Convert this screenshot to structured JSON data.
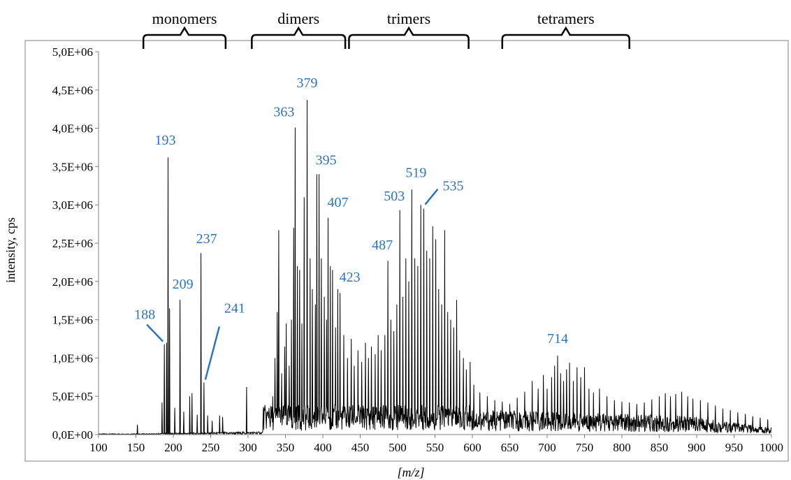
{
  "chart_data": {
    "type": "line",
    "title": "",
    "xlabel": "[m/z]",
    "ylabel": "intensity, cps",
    "xlim": [
      100,
      1000
    ],
    "ylim": [
      0,
      5000000
    ],
    "x_ticks": [
      100,
      150,
      200,
      250,
      300,
      350,
      400,
      450,
      500,
      550,
      600,
      650,
      700,
      750,
      800,
      850,
      900,
      950,
      1000
    ],
    "x_tick_labels": [
      "100",
      "150",
      "200",
      "250",
      "300",
      "350",
      "400",
      "450",
      "500",
      "550",
      "600",
      "650",
      "700",
      "750",
      "800",
      "850",
      "900",
      "950",
      "1000"
    ],
    "y_ticks": [
      0,
      500000,
      1000000,
      1500000,
      2000000,
      2500000,
      3000000,
      3500000,
      4000000,
      4500000,
      5000000
    ],
    "y_tick_labels": [
      "0,0E+00",
      "5,0E+05",
      "1,0E+06",
      "1,5E+06",
      "2,0E+06",
      "2,5E+06",
      "3,0E+06",
      "3,5E+06",
      "4,0E+06",
      "4,5E+06",
      "5,0E+06"
    ],
    "grid": false,
    "line_color": "#000000",
    "label_color": "#2e75b6",
    "groups": [
      {
        "name": "monomers",
        "from": 160,
        "to": 270
      },
      {
        "name": "dimers",
        "from": 305,
        "to": 430
      },
      {
        "name": "trimers",
        "from": 435,
        "to": 595
      },
      {
        "name": "tetramers",
        "from": 640,
        "to": 810
      }
    ],
    "peaks": [
      {
        "x": 152,
        "y": 130000
      },
      {
        "x": 185,
        "y": 420000
      },
      {
        "x": 188,
        "y": 1180000,
        "label": "188",
        "leader": true
      },
      {
        "x": 191,
        "y": 1200000
      },
      {
        "x": 193,
        "y": 3620000,
        "label": "193"
      },
      {
        "x": 195,
        "y": 1650000
      },
      {
        "x": 202,
        "y": 350000
      },
      {
        "x": 209,
        "y": 1760000,
        "label": "209"
      },
      {
        "x": 214,
        "y": 300000
      },
      {
        "x": 222,
        "y": 500000
      },
      {
        "x": 225,
        "y": 540000
      },
      {
        "x": 232,
        "y": 260000
      },
      {
        "x": 237,
        "y": 2370000,
        "label": "237"
      },
      {
        "x": 241,
        "y": 680000,
        "label": "241",
        "leader": true
      },
      {
        "x": 246,
        "y": 250000
      },
      {
        "x": 252,
        "y": 180000
      },
      {
        "x": 262,
        "y": 250000
      },
      {
        "x": 266,
        "y": 230000
      },
      {
        "x": 298,
        "y": 620000
      },
      {
        "x": 320,
        "y": 200000
      },
      {
        "x": 328,
        "y": 350000
      },
      {
        "x": 333,
        "y": 500000
      },
      {
        "x": 336,
        "y": 1000000
      },
      {
        "x": 339,
        "y": 1600000
      },
      {
        "x": 341,
        "y": 2670000
      },
      {
        "x": 345,
        "y": 800000
      },
      {
        "x": 349,
        "y": 1150000
      },
      {
        "x": 351,
        "y": 1450000
      },
      {
        "x": 355,
        "y": 900000
      },
      {
        "x": 358,
        "y": 1500000
      },
      {
        "x": 361,
        "y": 2700000
      },
      {
        "x": 363,
        "y": 4010000,
        "label": "363"
      },
      {
        "x": 366,
        "y": 2200000
      },
      {
        "x": 369,
        "y": 2150000
      },
      {
        "x": 372,
        "y": 1450000
      },
      {
        "x": 375,
        "y": 3100000
      },
      {
        "x": 379,
        "y": 4370000,
        "label": "379"
      },
      {
        "x": 383,
        "y": 2300000
      },
      {
        "x": 386,
        "y": 1900000
      },
      {
        "x": 390,
        "y": 1700000
      },
      {
        "x": 392,
        "y": 3400000
      },
      {
        "x": 395,
        "y": 3400000,
        "label": "395"
      },
      {
        "x": 398,
        "y": 2300000
      },
      {
        "x": 402,
        "y": 1800000
      },
      {
        "x": 405,
        "y": 1500000
      },
      {
        "x": 407,
        "y": 2830000,
        "label": "407"
      },
      {
        "x": 410,
        "y": 2200000
      },
      {
        "x": 413,
        "y": 2150000
      },
      {
        "x": 417,
        "y": 1400000
      },
      {
        "x": 420,
        "y": 1900000
      },
      {
        "x": 423,
        "y": 1850000,
        "label": "423"
      },
      {
        "x": 428,
        "y": 1300000
      },
      {
        "x": 433,
        "y": 1000000
      },
      {
        "x": 438,
        "y": 1250000
      },
      {
        "x": 442,
        "y": 900000
      },
      {
        "x": 447,
        "y": 1100000
      },
      {
        "x": 452,
        "y": 950000
      },
      {
        "x": 457,
        "y": 1200000
      },
      {
        "x": 461,
        "y": 1000000
      },
      {
        "x": 465,
        "y": 1150000
      },
      {
        "x": 470,
        "y": 1050000
      },
      {
        "x": 474,
        "y": 1300000
      },
      {
        "x": 478,
        "y": 1100000
      },
      {
        "x": 483,
        "y": 1300000
      },
      {
        "x": 487,
        "y": 2270000,
        "label": "487"
      },
      {
        "x": 491,
        "y": 1500000
      },
      {
        "x": 495,
        "y": 1350000
      },
      {
        "x": 499,
        "y": 1700000
      },
      {
        "x": 503,
        "y": 2930000,
        "label": "503"
      },
      {
        "x": 507,
        "y": 1800000
      },
      {
        "x": 511,
        "y": 2300000
      },
      {
        "x": 515,
        "y": 2000000
      },
      {
        "x": 519,
        "y": 3200000,
        "label": "519"
      },
      {
        "x": 523,
        "y": 2300000
      },
      {
        "x": 527,
        "y": 2200000
      },
      {
        "x": 531,
        "y": 3000000
      },
      {
        "x": 535,
        "y": 2950000,
        "label": "535",
        "leader": true
      },
      {
        "x": 539,
        "y": 2400000
      },
      {
        "x": 543,
        "y": 2300000
      },
      {
        "x": 547,
        "y": 2720000
      },
      {
        "x": 551,
        "y": 2550000
      },
      {
        "x": 555,
        "y": 1900000
      },
      {
        "x": 559,
        "y": 1700000
      },
      {
        "x": 563,
        "y": 2670000
      },
      {
        "x": 567,
        "y": 1600000
      },
      {
        "x": 571,
        "y": 1500000
      },
      {
        "x": 575,
        "y": 1400000
      },
      {
        "x": 579,
        "y": 1760000
      },
      {
        "x": 583,
        "y": 1100000
      },
      {
        "x": 588,
        "y": 1000000
      },
      {
        "x": 592,
        "y": 850000
      },
      {
        "x": 597,
        "y": 950000
      },
      {
        "x": 602,
        "y": 650000
      },
      {
        "x": 610,
        "y": 550000
      },
      {
        "x": 620,
        "y": 500000
      },
      {
        "x": 630,
        "y": 450000
      },
      {
        "x": 640,
        "y": 430000
      },
      {
        "x": 650,
        "y": 400000
      },
      {
        "x": 660,
        "y": 480000
      },
      {
        "x": 670,
        "y": 560000
      },
      {
        "x": 680,
        "y": 700000
      },
      {
        "x": 688,
        "y": 600000
      },
      {
        "x": 695,
        "y": 780000
      },
      {
        "x": 700,
        "y": 600000
      },
      {
        "x": 706,
        "y": 750000
      },
      {
        "x": 710,
        "y": 900000
      },
      {
        "x": 714,
        "y": 1030000,
        "label": "714"
      },
      {
        "x": 718,
        "y": 800000
      },
      {
        "x": 722,
        "y": 700000
      },
      {
        "x": 726,
        "y": 850000
      },
      {
        "x": 730,
        "y": 940000
      },
      {
        "x": 735,
        "y": 700000
      },
      {
        "x": 740,
        "y": 880000
      },
      {
        "x": 745,
        "y": 750000
      },
      {
        "x": 750,
        "y": 880000
      },
      {
        "x": 756,
        "y": 600000
      },
      {
        "x": 762,
        "y": 550000
      },
      {
        "x": 770,
        "y": 600000
      },
      {
        "x": 780,
        "y": 500000
      },
      {
        "x": 790,
        "y": 450000
      },
      {
        "x": 800,
        "y": 430000
      },
      {
        "x": 810,
        "y": 420000
      },
      {
        "x": 820,
        "y": 400000
      },
      {
        "x": 830,
        "y": 420000
      },
      {
        "x": 840,
        "y": 460000
      },
      {
        "x": 850,
        "y": 500000
      },
      {
        "x": 858,
        "y": 540000
      },
      {
        "x": 865,
        "y": 500000
      },
      {
        "x": 872,
        "y": 530000
      },
      {
        "x": 880,
        "y": 560000
      },
      {
        "x": 888,
        "y": 500000
      },
      {
        "x": 895,
        "y": 470000
      },
      {
        "x": 905,
        "y": 450000
      },
      {
        "x": 915,
        "y": 420000
      },
      {
        "x": 925,
        "y": 380000
      },
      {
        "x": 935,
        "y": 340000
      },
      {
        "x": 945,
        "y": 320000
      },
      {
        "x": 955,
        "y": 290000
      },
      {
        "x": 965,
        "y": 270000
      },
      {
        "x": 975,
        "y": 240000
      },
      {
        "x": 985,
        "y": 220000
      },
      {
        "x": 995,
        "y": 200000
      }
    ]
  }
}
